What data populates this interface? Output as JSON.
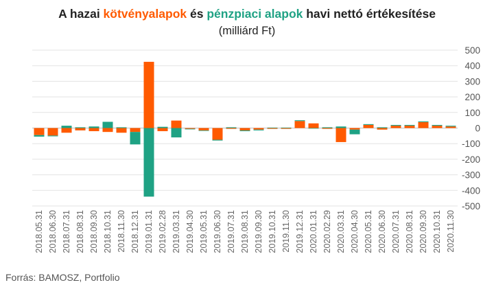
{
  "chart_data": {
    "type": "bar",
    "stacked": true,
    "title": {
      "prefix": "A hazai ",
      "series1": "kötvényalapok",
      "middle": " és ",
      "series2": "pénzpiaci alapok",
      "suffix": " havi nettó értékesítése"
    },
    "subtitle": "(milliárd Ft)",
    "source": "Forrás: BAMOSZ, Portfolio",
    "ylim": [
      -500,
      500
    ],
    "yticks": [
      500,
      400,
      300,
      200,
      100,
      0,
      -100,
      -200,
      -300,
      -400,
      -500
    ],
    "grid": true,
    "categories": [
      "2018.05.31",
      "2018.06.30",
      "2018.07.31",
      "2018.08.31",
      "2018.09.30",
      "2018.10.31",
      "2018.11.30",
      "2018.12.31",
      "2019.01.31",
      "2019.02.28",
      "2019.03.31",
      "2019.04.30",
      "2019.05.31",
      "2019.06.30",
      "2019.07.31",
      "2019.08.31",
      "2019.09.30",
      "2019.10.31",
      "2019.11.30",
      "2019.12.31",
      "2020.01.31",
      "2020.02.29",
      "2020.03.31",
      "2020.04.30",
      "2020.05.31",
      "2020.06.30",
      "2020.07.31",
      "2020.08.31",
      "2020.09.30",
      "2020.10.31",
      "2020.11.30"
    ],
    "series": [
      {
        "name": "kötvényalapok",
        "color": "#ff5a00",
        "values": [
          -45,
          -48,
          -30,
          -15,
          -20,
          -25,
          -30,
          -25,
          425,
          -20,
          48,
          -5,
          -15,
          -75,
          -5,
          -15,
          -10,
          -5,
          -5,
          45,
          30,
          -5,
          -90,
          -10,
          20,
          -10,
          15,
          15,
          38,
          15,
          10
        ]
      },
      {
        "name": "pénzpiaci alapok",
        "color": "#1fa284",
        "values": [
          -10,
          -5,
          15,
          5,
          10,
          40,
          5,
          -80,
          -440,
          8,
          -60,
          -3,
          -3,
          -5,
          5,
          -5,
          -5,
          3,
          3,
          5,
          -3,
          5,
          10,
          -30,
          5,
          5,
          5,
          5,
          5,
          5,
          5
        ]
      }
    ]
  }
}
